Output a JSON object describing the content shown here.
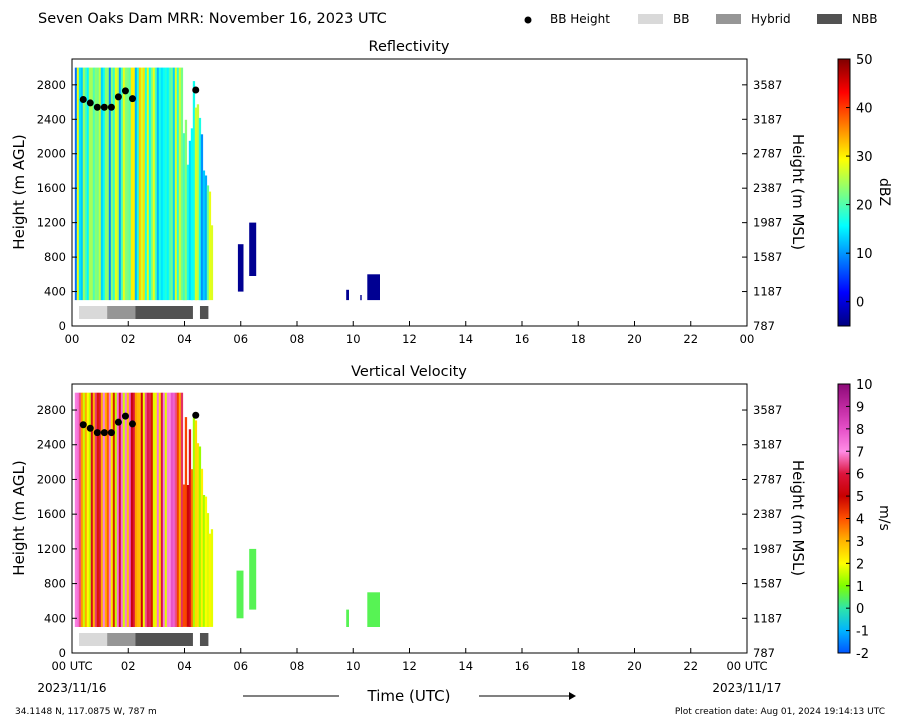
{
  "header": {
    "title": "Seven Oaks Dam MRR:  November 16, 2023 UTC",
    "legend": [
      {
        "label": "BB Height",
        "kind": "marker",
        "color": "#000000"
      },
      {
        "label": "BB",
        "kind": "swatch",
        "color": "#d9d9d9"
      },
      {
        "label": "Hybrid",
        "kind": "swatch",
        "color": "#969696"
      },
      {
        "label": "NBB",
        "kind": "swatch",
        "color": "#525252"
      }
    ]
  },
  "footer": {
    "location": "34.1148 N, 117.0875 W, 787 m",
    "creation": "Plot creation date: Aug 01, 2024 19:14:13 UTC",
    "time_label": "Time (UTC)",
    "start_date": "2023/11/16",
    "end_date": "2023/11/17"
  },
  "chart_data": [
    {
      "type": "heatmap",
      "title": "Reflectivity",
      "ylabel": "Height (m AGL)",
      "ylabel_right": "Height (m MSL)",
      "xlim": [
        0,
        24
      ],
      "ylim": [
        0,
        3100
      ],
      "x_ticks": [
        "00",
        "02",
        "04",
        "06",
        "08",
        "10",
        "12",
        "14",
        "16",
        "18",
        "20",
        "22",
        "00"
      ],
      "y_ticks": [
        0,
        400,
        800,
        1200,
        1600,
        2000,
        2400,
        2800
      ],
      "y_ticks_right": [
        787,
        1187,
        1587,
        1987,
        2387,
        2787,
        3187,
        3587
      ],
      "colorbar": {
        "label": "dBZ",
        "min": -5,
        "max": 50,
        "ticks": [
          0,
          10,
          20,
          30,
          40,
          50
        ],
        "colors": [
          "#00007f",
          "#0000ff",
          "#007fff",
          "#00ffff",
          "#7fff7f",
          "#ffff00",
          "#ff7f00",
          "#ff0000",
          "#7f0000"
        ]
      },
      "bb_height_points": [
        {
          "x": 0.4,
          "y": 2630
        },
        {
          "x": 0.65,
          "y": 2590
        },
        {
          "x": 0.9,
          "y": 2540
        },
        {
          "x": 1.15,
          "y": 2540
        },
        {
          "x": 1.4,
          "y": 2540
        },
        {
          "x": 1.65,
          "y": 2660
        },
        {
          "x": 1.9,
          "y": 2730
        },
        {
          "x": 2.15,
          "y": 2640
        },
        {
          "x": 4.4,
          "y": 2740
        }
      ],
      "bb_type_bar": [
        {
          "start": 0.25,
          "end": 1.25,
          "type": "BB"
        },
        {
          "start": 1.25,
          "end": 2.25,
          "type": "Hybrid"
        },
        {
          "start": 2.25,
          "end": 4.3,
          "type": "NBB"
        },
        {
          "start": 4.55,
          "end": 4.85,
          "type": "NBB"
        }
      ],
      "echo_regions": [
        {
          "x0": 0.1,
          "x1": 4.95,
          "y0": 300,
          "y1": 3000,
          "level": "5 to 35"
        },
        {
          "x0": 5.9,
          "x1": 6.1,
          "y0": 400,
          "y1": 950,
          "level": "-4"
        },
        {
          "x0": 6.3,
          "x1": 6.55,
          "y0": 580,
          "y1": 1200,
          "level": "-4"
        },
        {
          "x0": 9.75,
          "x1": 9.85,
          "y0": 300,
          "y1": 420,
          "level": "-4"
        },
        {
          "x0": 10.25,
          "x1": 10.3,
          "y0": 300,
          "y1": 360,
          "level": "-4"
        },
        {
          "x0": 10.5,
          "x1": 10.95,
          "y0": 300,
          "y1": 600,
          "level": "-4"
        }
      ]
    },
    {
      "type": "heatmap",
      "title": "Vertical Velocity",
      "ylabel": "Height (m AGL)",
      "ylabel_right": "Height (m MSL)",
      "xlim": [
        0,
        24
      ],
      "ylim": [
        0,
        3100
      ],
      "x_ticks": [
        "00 UTC",
        "02",
        "04",
        "06",
        "08",
        "10",
        "12",
        "14",
        "16",
        "18",
        "20",
        "22",
        "00 UTC"
      ],
      "y_ticks": [
        0,
        400,
        800,
        1200,
        1600,
        2000,
        2400,
        2800
      ],
      "y_ticks_right": [
        787,
        1187,
        1587,
        1987,
        2387,
        2787,
        3187,
        3587
      ],
      "colorbar": {
        "label": "m/s",
        "min": -2,
        "max": 10,
        "ticks": [
          -2,
          -1,
          0,
          1,
          2,
          3,
          4,
          5,
          6,
          7,
          8,
          9,
          10
        ],
        "colors": [
          "#0055ff",
          "#00b4ff",
          "#2ee6a8",
          "#7fff00",
          "#ffff00",
          "#ffb400",
          "#ff5000",
          "#c80000",
          "#dc143c",
          "#ff8ce6",
          "#e650c8",
          "#be28a0",
          "#8c0a78"
        ]
      },
      "bb_height_points": [
        {
          "x": 0.4,
          "y": 2630
        },
        {
          "x": 0.65,
          "y": 2590
        },
        {
          "x": 0.9,
          "y": 2540
        },
        {
          "x": 1.15,
          "y": 2540
        },
        {
          "x": 1.4,
          "y": 2540
        },
        {
          "x": 1.65,
          "y": 2660
        },
        {
          "x": 1.9,
          "y": 2730
        },
        {
          "x": 2.15,
          "y": 2640
        },
        {
          "x": 4.4,
          "y": 2740
        }
      ],
      "bb_type_bar": [
        {
          "start": 0.25,
          "end": 1.25,
          "type": "BB"
        },
        {
          "start": 1.25,
          "end": 2.25,
          "type": "Hybrid"
        },
        {
          "start": 2.25,
          "end": 4.3,
          "type": "NBB"
        },
        {
          "start": 4.55,
          "end": 4.85,
          "type": "NBB"
        }
      ],
      "echo_regions": [
        {
          "x0": 0.1,
          "x1": 4.95,
          "y0": 300,
          "y1": 3000,
          "level": "1 to 8"
        },
        {
          "x0": 5.85,
          "x1": 6.1,
          "y0": 400,
          "y1": 950,
          "level": "0.5"
        },
        {
          "x0": 6.3,
          "x1": 6.55,
          "y0": 500,
          "y1": 1200,
          "level": "0.5"
        },
        {
          "x0": 9.75,
          "x1": 9.85,
          "y0": 300,
          "y1": 500,
          "level": "0.5"
        },
        {
          "x0": 10.5,
          "x1": 10.95,
          "y0": 300,
          "y1": 700,
          "level": "0.5"
        }
      ]
    }
  ]
}
